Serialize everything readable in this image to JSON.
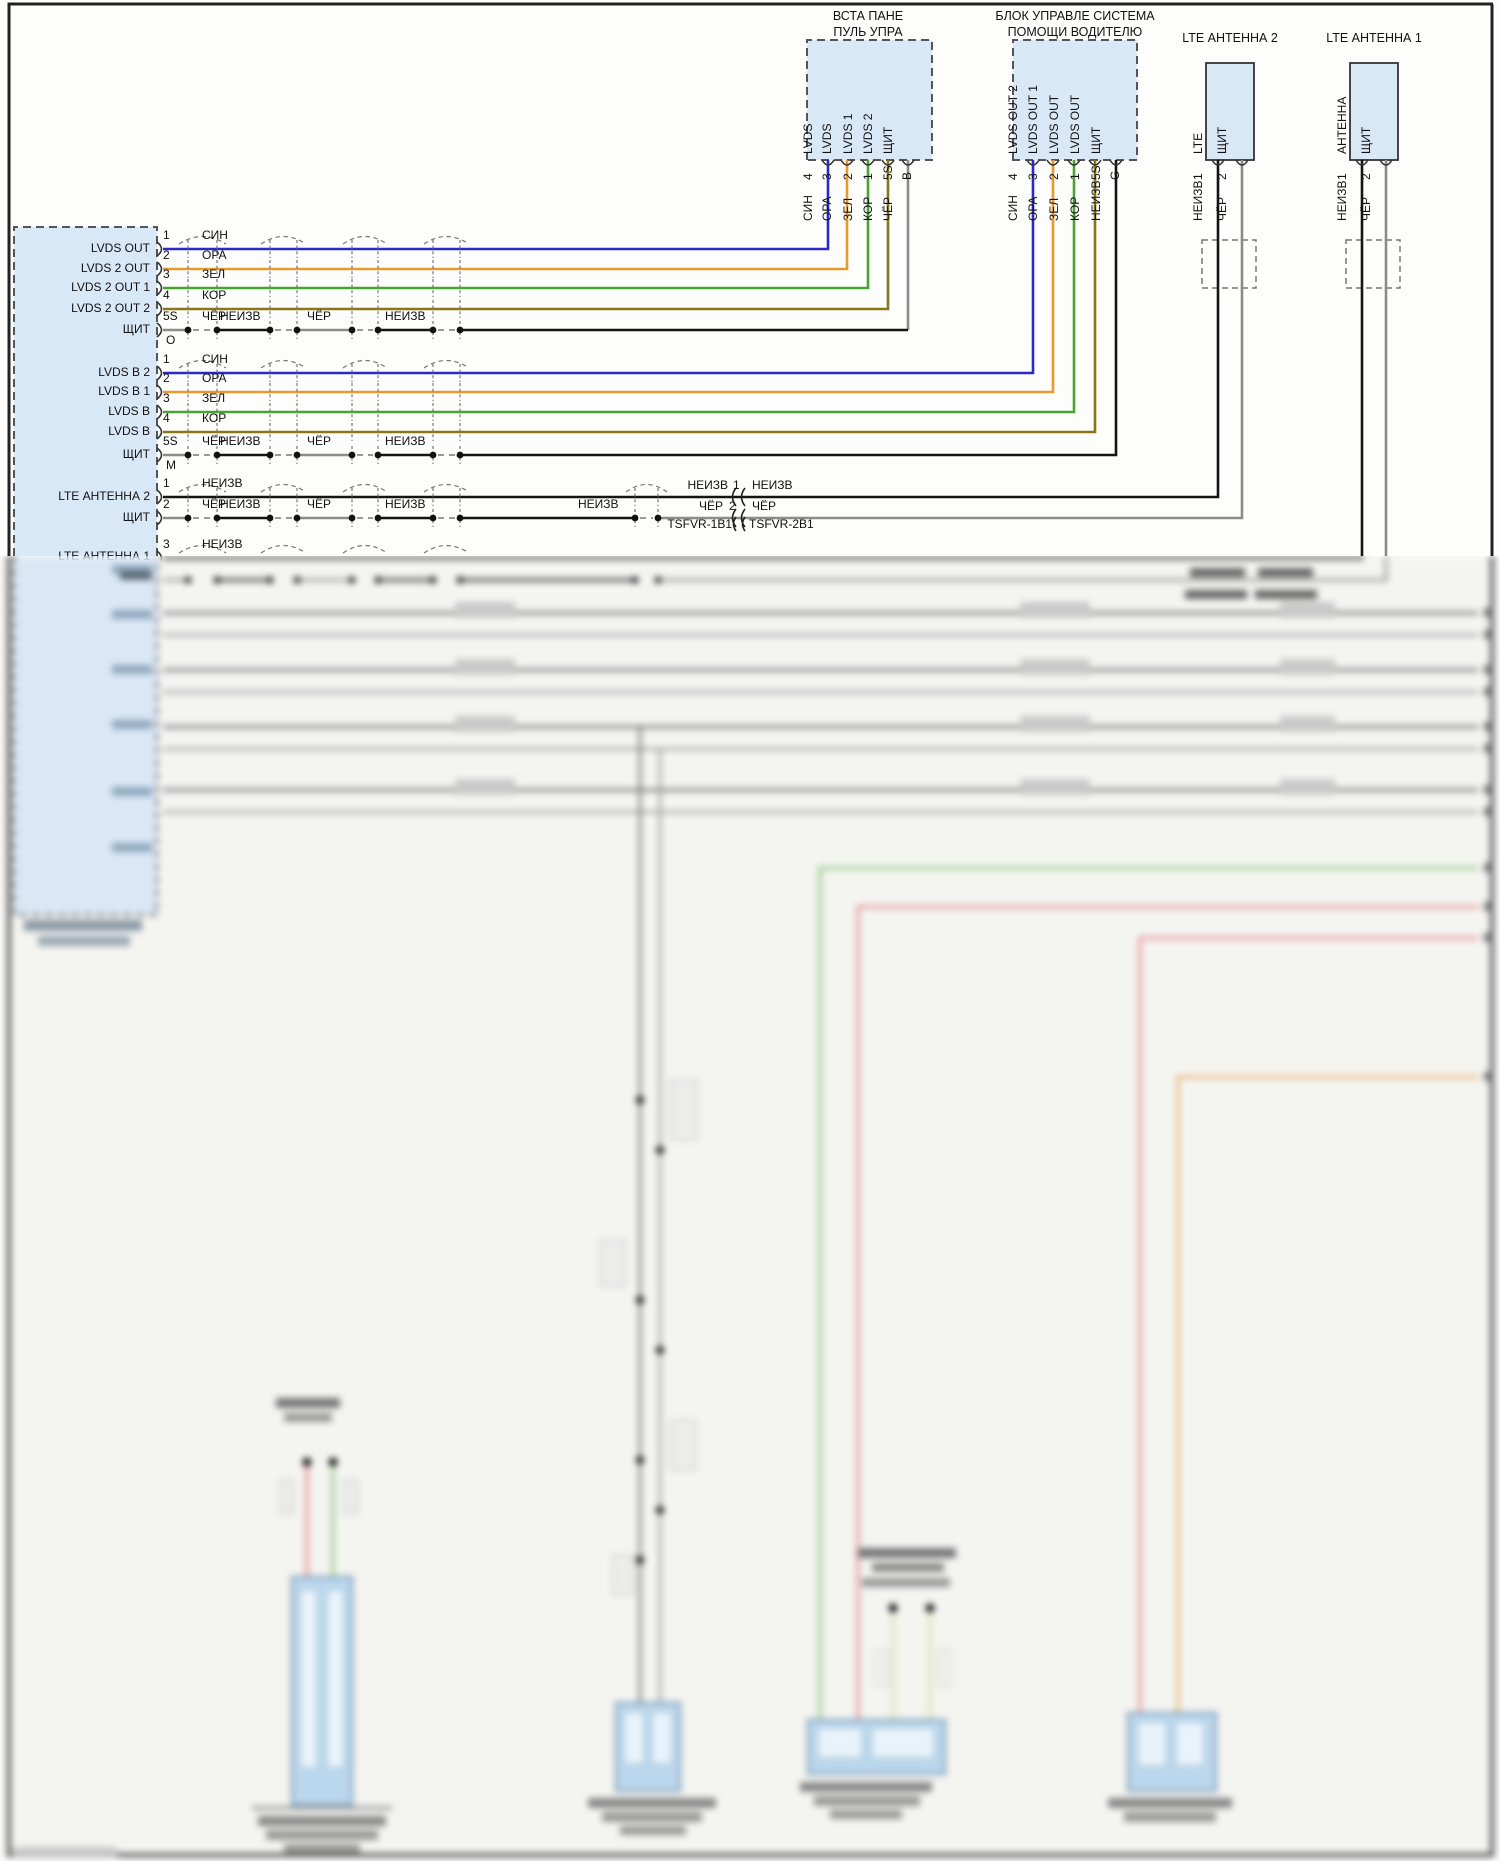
{
  "diagram": {
    "top_blocks": [
      {
        "title_lines": [
          "ВСТА ПАНЕ",
          "ПУЛЬ УПРА"
        ],
        "connector_letter": "B",
        "pins": [
          {
            "label": "LVDS",
            "num": "4",
            "wire": "СИН"
          },
          {
            "label": "LVDS",
            "num": "3",
            "wire": "ОРА"
          },
          {
            "label": "LVDS 1",
            "num": "2",
            "wire": "ЗЕЛ"
          },
          {
            "label": "LVDS 2",
            "num": "1",
            "wire": "КОР"
          },
          {
            "label": "ЩИТ",
            "num": "5S",
            "wire": "ЧЁР"
          }
        ]
      },
      {
        "title_lines": [
          "БЛОК УПРАВЛЕ СИСТЕМА",
          "ПОМОЩИ ВОДИТЕЛЮ"
        ],
        "connector_letter": "G",
        "pins": [
          {
            "label": "LVDS OUT 2",
            "num": "4",
            "wire": "СИН"
          },
          {
            "label": "LVDS OUT 1",
            "num": "3",
            "wire": "ОРА"
          },
          {
            "label": "LVDS OUT",
            "num": "2",
            "wire": "ЗЕЛ"
          },
          {
            "label": "LVDS OUT",
            "num": "1",
            "wire": "КОР"
          },
          {
            "label": "ЩИТ",
            "num": "5S",
            "wire": "НЕИЗВ"
          }
        ]
      },
      {
        "title_lines": [
          "LTE АНТЕННА 2"
        ],
        "connector_letter": "",
        "pins": [
          {
            "label": "LTE",
            "num": "1",
            "wire": "НЕИЗВ"
          },
          {
            "label": "ЩИТ",
            "num": "2",
            "wire": "ЧЁР"
          }
        ]
      },
      {
        "title_lines": [
          "LTE АНТЕННА 1"
        ],
        "connector_letter": "",
        "pins": [
          {
            "label": "АНТЕННА",
            "num": "1",
            "wire": "НЕИЗВ"
          },
          {
            "label": "ЩИТ",
            "num": "2",
            "wire": "ЧЁР"
          }
        ]
      }
    ],
    "left_block": {
      "groups": [
        {
          "connector_letter": "O",
          "rows": [
            {
              "label": "LVDS OUT",
              "num": "1",
              "wire": "СИН"
            },
            {
              "label": "LVDS 2 OUT",
              "num": "2",
              "wire": "ОРА"
            },
            {
              "label": "LVDS 2 OUT 1",
              "num": "3",
              "wire": "ЗЕЛ"
            },
            {
              "label": "LVDS 2 OUT 2",
              "num": "4",
              "wire": "КОР"
            },
            {
              "label": "ЩИТ",
              "num": "5S",
              "wire": "ЧЁР"
            }
          ]
        },
        {
          "connector_letter": "M",
          "rows": [
            {
              "label": "LVDS B 2",
              "num": "1",
              "wire": "СИН"
            },
            {
              "label": "LVDS B 1",
              "num": "2",
              "wire": "ОРА"
            },
            {
              "label": "LVDS B",
              "num": "3",
              "wire": "ЗЕЛ"
            },
            {
              "label": "LVDS B",
              "num": "4",
              "wire": "КОР"
            },
            {
              "label": "ЩИТ",
              "num": "5S",
              "wire": "ЧЁР"
            }
          ]
        },
        {
          "connector_letter": "",
          "rows": [
            {
              "label": "LTE АНТЕННА 2",
              "num": "1",
              "wire": "НЕИЗВ"
            },
            {
              "label": "ЩИТ",
              "num": "2",
              "wire": "ЧЁР"
            },
            {
              "label": "LTE АНТЕННА 1",
              "num": "3",
              "wire": "НЕИЗВ"
            }
          ]
        }
      ]
    },
    "inline_segment_labels": [
      "НЕИЗВ",
      "ЧЁР",
      "НЕИЗВ"
    ],
    "lte_row2_extra_label": "НЕИЗВ",
    "splice": {
      "row1_left": "НЕИЗВ",
      "row1_num": "1",
      "row1_right": "НЕИЗВ",
      "row2_left": "ЧЁР",
      "row2_num": "2",
      "row2_right": "ЧЁР",
      "connector_left": "TSFVR-1B1",
      "connector_right": "TSFVR-2B1"
    },
    "wire_colors": {
      "СИН": "#2a2ac8",
      "ОРА": "#e8992e",
      "ЗЕЛ": "#46a52e",
      "КОР": "#8a7618",
      "ЧЁР": "#8c8c8c",
      "НЕИЗВ": "#141414"
    },
    "block_fill_color": "#d9e8f7"
  }
}
